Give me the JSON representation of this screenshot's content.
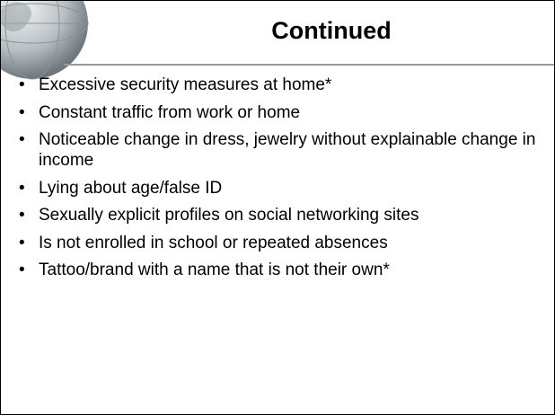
{
  "slide": {
    "title": "Continued",
    "bullets": [
      "Excessive security measures at home*",
      "Constant traffic from work or home",
      "Noticeable change in dress, jewelry without explainable change in income",
      "Lying about age/false ID",
      "Sexually explicit profiles on social networking sites",
      "Is not enrolled in school or repeated absences",
      "Tattoo/brand with a name that is not their own*"
    ]
  }
}
